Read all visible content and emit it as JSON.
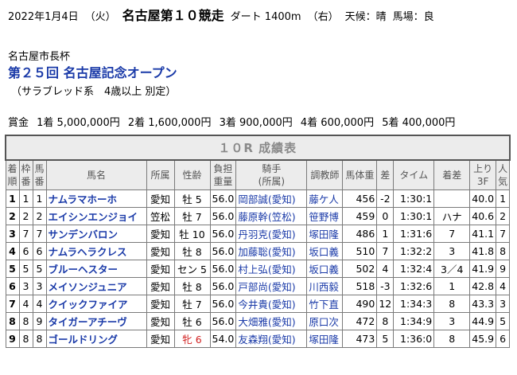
{
  "header": {
    "date": "2022年1月4日",
    "weekday": "（火）",
    "race": "名古屋第１０競走",
    "course": "ダート 1400m",
    "direction": "（右）",
    "weather": "天候：晴",
    "track": "馬場：良"
  },
  "cup_name": "名古屋市長杯",
  "race_title": "第２５回 名古屋記念オープン",
  "conditions": "（サラブレッド系　4歳以上 別定）",
  "prize": {
    "label": "賞金",
    "items": [
      "1着 5,000,000円",
      "2着 1,600,000円",
      "3着 900,000円",
      "4着 600,000円",
      "5着 400,000円"
    ]
  },
  "table": {
    "title": "１０R 成績表",
    "headers": {
      "rank": [
        "着",
        "順"
      ],
      "frame": [
        "枠",
        "番"
      ],
      "num": [
        "馬",
        "番"
      ],
      "name": "馬名",
      "affil": "所属",
      "sexage": "性齢",
      "weight": [
        "負担",
        "重量"
      ],
      "jockey": [
        "騎手",
        "(所属)"
      ],
      "trainer": "調教師",
      "bodyweight": "馬体重",
      "diff": "差",
      "time": "タイム",
      "margin": "着差",
      "last3f": [
        "上り",
        "3F"
      ],
      "pop": [
        "人",
        "気"
      ]
    },
    "rows": [
      {
        "rank": "1",
        "frame": "1",
        "num": "1",
        "name": "ナムラマホーホ",
        "affil": "愛知",
        "sex": "牡",
        "age": "5",
        "weight": "56.0",
        "jockey": "岡部誠(愛知)",
        "trainer": "藤ケ人",
        "body": "456",
        "diff": "-2",
        "time": "1:30:1",
        "margin": "",
        "f3": "40.0",
        "pop": "1",
        "female": false
      },
      {
        "rank": "2",
        "frame": "2",
        "num": "2",
        "name": "エイシンエンジョイ",
        "affil": "笠松",
        "sex": "牡",
        "age": "7",
        "weight": "56.0",
        "jockey": "藤原幹(笠松)",
        "trainer": "笹野博",
        "body": "459",
        "diff": "0",
        "time": "1:30:1",
        "margin": "ハナ",
        "f3": "40.6",
        "pop": "2",
        "female": false
      },
      {
        "rank": "3",
        "frame": "7",
        "num": "7",
        "name": "サンデンバロン",
        "affil": "愛知",
        "sex": "牡",
        "age": "10",
        "weight": "56.0",
        "jockey": "丹羽克(愛知)",
        "trainer": "塚田隆",
        "body": "486",
        "diff": "1",
        "time": "1:31:6",
        "margin": "7",
        "f3": "41.1",
        "pop": "7",
        "female": false
      },
      {
        "rank": "4",
        "frame": "6",
        "num": "6",
        "name": "ナムラヘラクレス",
        "affil": "愛知",
        "sex": "牡",
        "age": "8",
        "weight": "56.0",
        "jockey": "加藤聡(愛知)",
        "trainer": "坂口義",
        "body": "510",
        "diff": "7",
        "time": "1:32:2",
        "margin": "3",
        "f3": "41.8",
        "pop": "8",
        "female": false
      },
      {
        "rank": "5",
        "frame": "5",
        "num": "5",
        "name": "ブルーヘスター",
        "affil": "愛知",
        "sex": "セン",
        "age": "5",
        "weight": "56.0",
        "jockey": "村上弘(愛知)",
        "trainer": "坂口義",
        "body": "502",
        "diff": "4",
        "time": "1:32:4",
        "margin": "3／4",
        "f3": "41.9",
        "pop": "9",
        "female": false
      },
      {
        "rank": "6",
        "frame": "3",
        "num": "3",
        "name": "メイソンジュニア",
        "affil": "愛知",
        "sex": "牡",
        "age": "8",
        "weight": "56.0",
        "jockey": "戸部尚(愛知)",
        "trainer": "川西毅",
        "body": "518",
        "diff": "-3",
        "time": "1:32:6",
        "margin": "1",
        "f3": "42.8",
        "pop": "4",
        "female": false
      },
      {
        "rank": "7",
        "frame": "4",
        "num": "4",
        "name": "クイックファイア",
        "affil": "愛知",
        "sex": "牡",
        "age": "7",
        "weight": "56.0",
        "jockey": "今井貴(愛知)",
        "trainer": "竹下直",
        "body": "490",
        "diff": "12",
        "time": "1:34:3",
        "margin": "8",
        "f3": "43.3",
        "pop": "3",
        "female": false
      },
      {
        "rank": "8",
        "frame": "8",
        "num": "9",
        "name": "タイガーアチーヴ",
        "affil": "愛知",
        "sex": "牡",
        "age": "6",
        "weight": "56.0",
        "jockey": "大畑雅(愛知)",
        "trainer": "原口次",
        "body": "472",
        "diff": "8",
        "time": "1:34:9",
        "margin": "3",
        "f3": "44.9",
        "pop": "5",
        "female": false
      },
      {
        "rank": "9",
        "frame": "8",
        "num": "8",
        "name": "ゴールドリング",
        "affil": "愛知",
        "sex": "牝",
        "age": "6",
        "weight": "54.0",
        "jockey": "友森翔(愛知)",
        "trainer": "塚田隆",
        "body": "473",
        "diff": "5",
        "time": "1:36:0",
        "margin": "8",
        "f3": "45.9",
        "pop": "6",
        "female": true
      }
    ]
  }
}
